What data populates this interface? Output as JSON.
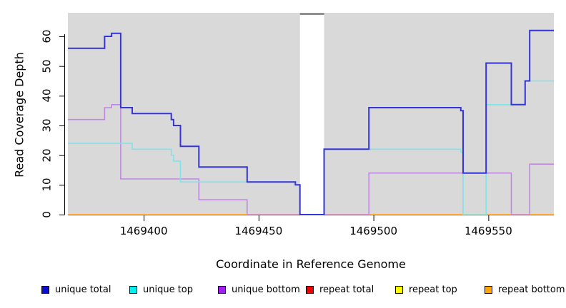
{
  "chart_data": {
    "type": "line",
    "step": true,
    "title": "",
    "xlabel": "Coordinate in Reference Genome",
    "ylabel": "Read Coverage Depth",
    "xlim": [
      1469367,
      1469578.5
    ],
    "ylim": [
      0,
      68
    ],
    "x_ticks": [
      1469400,
      1469450,
      1469500,
      1469550
    ],
    "y_ticks": [
      0,
      10,
      20,
      30,
      40,
      50,
      60
    ],
    "grid": false,
    "legend_position": "bottom",
    "plot_background": "#d9d9d9",
    "page_background": "#ffffff",
    "no_data_gap": {
      "x_start": 1469468,
      "x_end": 1469478.5
    },
    "series": [
      {
        "name": "unique total",
        "legend_color": "#0d0dd0",
        "line_color": "#3434d9",
        "line_width": 2,
        "points": [
          [
            1469367,
            56
          ],
          [
            1469383,
            60
          ],
          [
            1469386,
            61
          ],
          [
            1469390,
            36
          ],
          [
            1469395,
            34
          ],
          [
            1469412,
            32
          ],
          [
            1469413,
            30
          ],
          [
            1469416,
            23
          ],
          [
            1469424,
            16
          ],
          [
            1469445,
            11
          ],
          [
            1469466,
            10
          ],
          [
            1469468,
            0
          ],
          [
            1469478.5,
            22
          ],
          [
            1469498,
            36
          ],
          [
            1469538,
            35
          ],
          [
            1469539,
            14
          ],
          [
            1469549,
            51
          ],
          [
            1469560,
            37
          ],
          [
            1469566,
            45
          ],
          [
            1469568,
            62
          ],
          [
            1469578.5,
            62
          ]
        ]
      },
      {
        "name": "unique top",
        "legend_color": "#00f0f0",
        "line_color": "#7fe3ea",
        "line_width": 1.6,
        "points": [
          [
            1469367,
            24
          ],
          [
            1469395,
            22
          ],
          [
            1469412,
            20
          ],
          [
            1469413,
            18
          ],
          [
            1469416,
            11
          ],
          [
            1469466,
            10
          ],
          [
            1469468,
            0
          ],
          [
            1469478.5,
            22
          ],
          [
            1469538,
            21
          ],
          [
            1469539,
            0
          ],
          [
            1469549,
            37
          ],
          [
            1469566,
            45
          ],
          [
            1469578.5,
            45
          ]
        ]
      },
      {
        "name": "unique bottom",
        "legend_color": "#a020f0",
        "line_color": "#c087e2",
        "line_width": 1.6,
        "points": [
          [
            1469367,
            32
          ],
          [
            1469383,
            36
          ],
          [
            1469386,
            37
          ],
          [
            1469390,
            12
          ],
          [
            1469424,
            5
          ],
          [
            1469445,
            0
          ],
          [
            1469498,
            14
          ],
          [
            1469560,
            0
          ],
          [
            1469568,
            17
          ],
          [
            1469578.5,
            17
          ]
        ]
      },
      {
        "name": "repeat total",
        "legend_color": "#ee0000",
        "line_color": "#d43d3d",
        "line_width": 1.2,
        "points": [
          [
            1469367,
            0
          ],
          [
            1469578.5,
            0
          ]
        ]
      },
      {
        "name": "repeat top",
        "legend_color": "#ffff00",
        "line_color": "#f0ef40",
        "line_width": 1.2,
        "points": [
          [
            1469367,
            0
          ],
          [
            1469578.5,
            0
          ]
        ]
      },
      {
        "name": "repeat bottom",
        "legend_color": "#ffa500",
        "line_color": "#ffa426",
        "line_width": 1.8,
        "points": [
          [
            1469367,
            0
          ],
          [
            1469578.5,
            0
          ]
        ]
      }
    ]
  }
}
